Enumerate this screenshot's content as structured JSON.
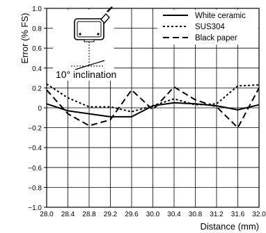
{
  "chart_data": {
    "type": "line",
    "xlabel": "Distance (mm)",
    "ylabel": "Error (% FS)",
    "x": [
      28.0,
      28.4,
      28.8,
      29.2,
      29.6,
      30.0,
      30.4,
      30.8,
      31.2,
      31.6,
      32.0
    ],
    "x_tick_labels": [
      "28.0",
      "28.4",
      "28.8",
      "29.2",
      "29.6",
      "30.0",
      "30.4",
      "30.8",
      "31.2",
      "31.6",
      "32.0"
    ],
    "y_tick_labels": [
      "1.0",
      "0.8",
      "0.6",
      "0.4",
      "0.2",
      "0",
      "−0.2",
      "−0.4",
      "−0.6",
      "−0.8",
      "−1.0"
    ],
    "y_ticks": [
      1.0,
      0.8,
      0.6,
      0.4,
      0.2,
      0,
      -0.2,
      -0.4,
      -0.6,
      -0.8,
      -1.0
    ],
    "xlim": [
      28.0,
      32.0
    ],
    "ylim": [
      -1.0,
      1.0
    ],
    "grid": true,
    "legend_position": "top-right",
    "series": [
      {
        "name": "White ceramic",
        "style": "solid",
        "values": [
          0.04,
          -0.03,
          -0.06,
          -0.09,
          -0.09,
          0.02,
          0.05,
          0.04,
          0.02,
          -0.02,
          0.03
        ]
      },
      {
        "name": "SUS304",
        "style": "dotted",
        "values": [
          0.24,
          0.1,
          0.01,
          0.01,
          -0.04,
          0.02,
          0.09,
          0.03,
          0.04,
          0.22,
          0.23
        ]
      },
      {
        "name": "Black paper",
        "style": "dashed",
        "values": [
          0.18,
          -0.06,
          -0.18,
          -0.12,
          0.18,
          -0.02,
          0.21,
          0.08,
          0.01,
          -0.2,
          0.2
        ]
      }
    ],
    "annotations": [
      {
        "text": "10° inclination"
      }
    ],
    "colors": {
      "line": "#000000",
      "grid": "#000000",
      "background": "#ffffff"
    }
  }
}
